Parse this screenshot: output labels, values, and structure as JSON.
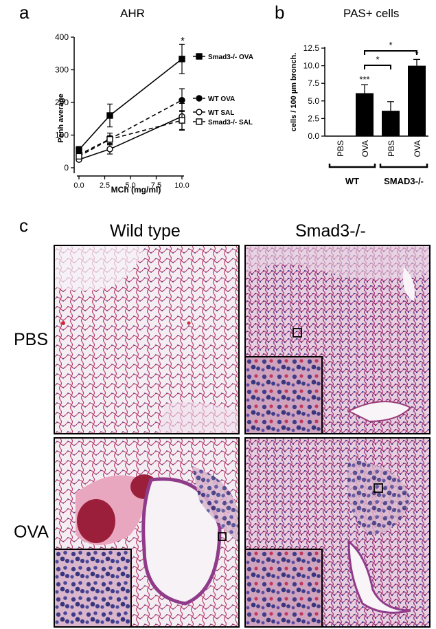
{
  "panel_a": {
    "letter": "a",
    "title": "AHR",
    "xlabel": "MCh (mg/ml)",
    "ylabel": "Penh average",
    "x_ticks": [
      "0.0",
      "2.5",
      "5.0",
      "7.5",
      "10.0"
    ],
    "y_ticks": [
      "0",
      "100",
      "200",
      "300",
      "400"
    ],
    "significance": "*",
    "legend": [
      "Smad3-/- OVA",
      "WT OVA",
      "WT SAL",
      "Smad3-/- SAL"
    ]
  },
  "panel_b": {
    "letter": "b",
    "title": "PAS+ cells",
    "ylabel": "cells / 100 µm bronch.",
    "y_ticks": [
      "0.0",
      "2.5",
      "5.0",
      "7.5",
      "10.0",
      "12.5"
    ],
    "bar_labels": [
      "PBS",
      "OVA",
      "PBS",
      "OVA"
    ],
    "group_labels": [
      "WT",
      "SMAD3-/-"
    ],
    "bar_annotations": [
      "",
      "***",
      "",
      "*"
    ],
    "bracket_labels": [
      "*",
      "*"
    ]
  },
  "panel_c": {
    "letter": "c",
    "col_headers": [
      "Wild type",
      "Smad3-/-"
    ],
    "row_labels": [
      "PBS",
      "OVA"
    ]
  },
  "chart_data": [
    {
      "type": "line",
      "title": "AHR",
      "xlabel": "MCh (mg/ml)",
      "ylabel": "Penh average",
      "xlim": [
        0,
        10
      ],
      "ylim": [
        0,
        400
      ],
      "x": [
        0,
        3,
        10
      ],
      "series": [
        {
          "name": "Smad3-/- OVA",
          "marker": "square-filled",
          "line": "solid",
          "values": [
            55,
            160,
            333
          ],
          "errors": [
            10,
            35,
            45
          ]
        },
        {
          "name": "WT OVA",
          "marker": "circle-filled",
          "line": "dashed",
          "values": [
            40,
            88,
            207
          ],
          "errors": [
            8,
            18,
            35
          ]
        },
        {
          "name": "WT SAL",
          "marker": "circle-open",
          "line": "solid",
          "values": [
            25,
            57,
            157
          ],
          "errors": [
            5,
            15,
            40
          ]
        },
        {
          "name": "Smad3-/- SAL",
          "marker": "square-open",
          "line": "dashed",
          "values": [
            35,
            87,
            145
          ],
          "errors": [
            7,
            12,
            30
          ]
        }
      ],
      "annotations": [
        {
          "x": 10,
          "text": "*"
        }
      ],
      "grid": false,
      "legend_position": "right"
    },
    {
      "type": "bar",
      "title": "PAS+ cells",
      "ylabel": "cells / 100 µm bronch.",
      "categories": [
        "PBS",
        "OVA",
        "PBS",
        "OVA"
      ],
      "groups": [
        "WT",
        "SMAD3-/-"
      ],
      "values": [
        0,
        6.1,
        3.6,
        10.0
      ],
      "errors": [
        0,
        1.2,
        1.3,
        0.9
      ],
      "ylim": [
        0,
        12.5
      ],
      "annotations": [
        "",
        "***",
        "",
        "*"
      ],
      "brackets": [
        {
          "from": 1,
          "to": 2,
          "text": "*"
        },
        {
          "from": 1,
          "to": 3,
          "text": "*"
        }
      ],
      "grid": false
    }
  ]
}
